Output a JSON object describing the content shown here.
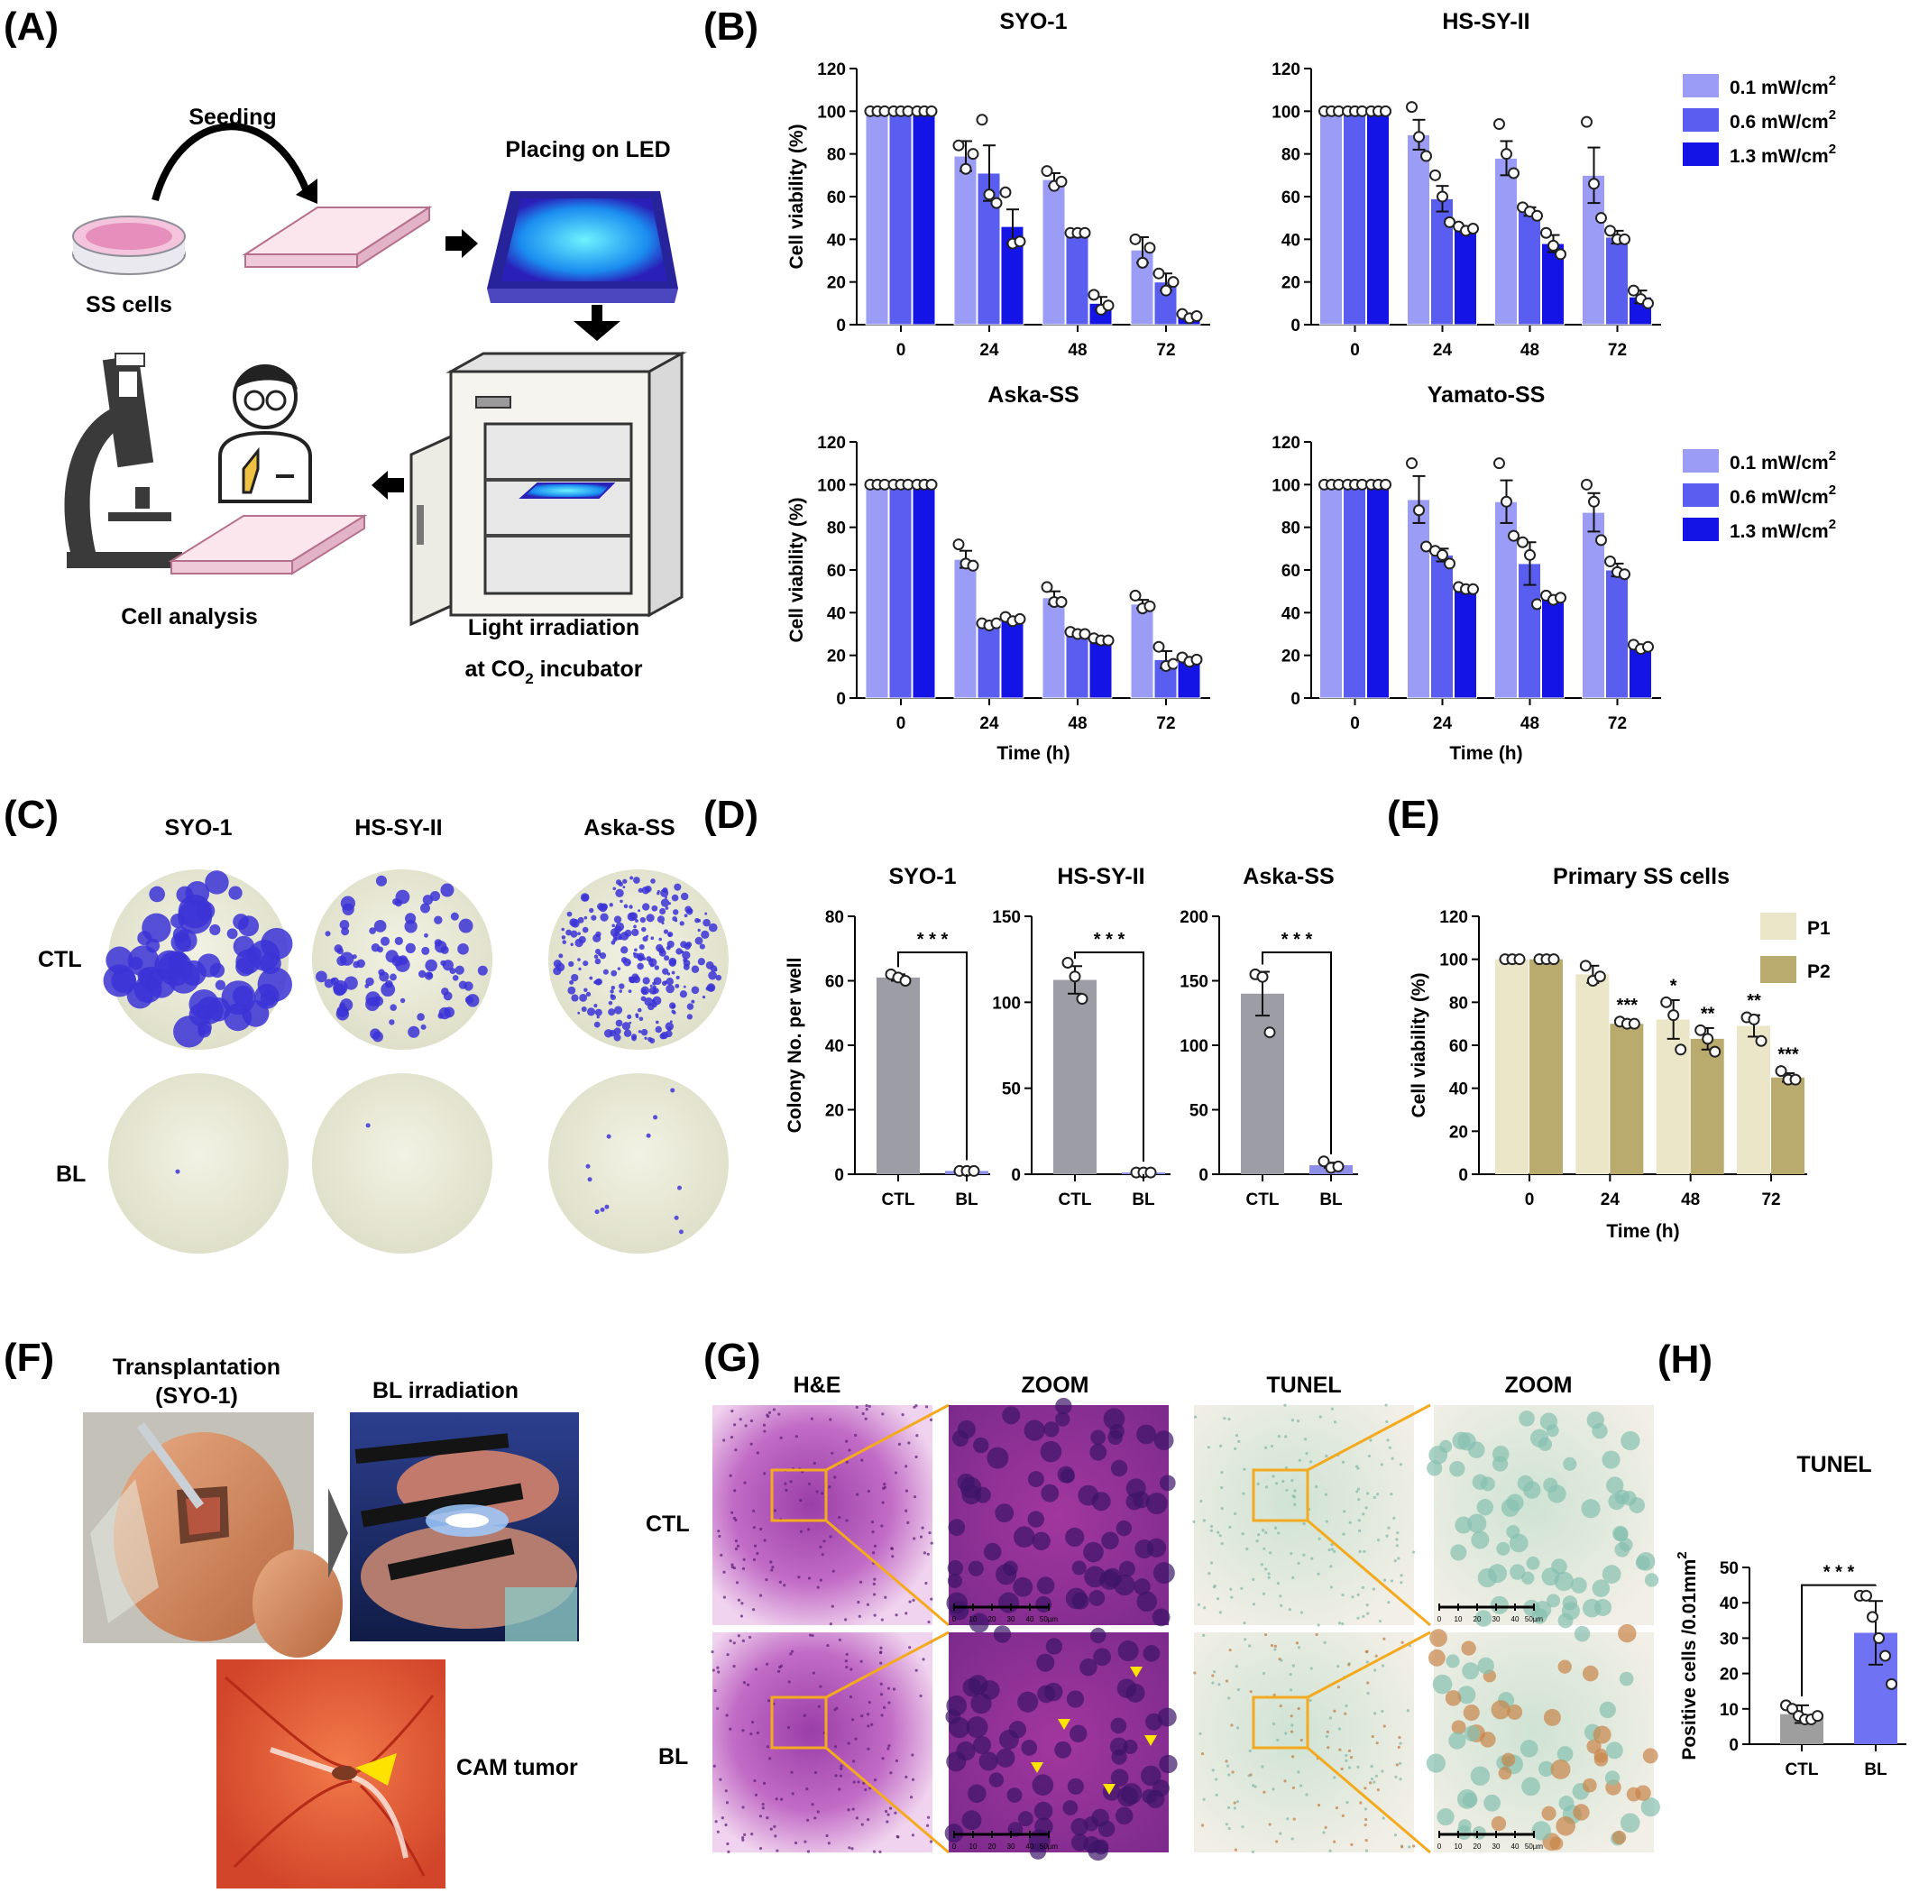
{
  "panel_labels": [
    "(A)",
    "(B)",
    "(C)",
    "(D)",
    "(E)",
    "(F)",
    "(G)",
    "(H)"
  ],
  "schematic": {
    "seeding": "Seeding",
    "placing": "Placing on LED",
    "ss_cells": "SS cells",
    "cell_analysis": "Cell analysis",
    "light_irradiation": "Light irradiation",
    "at_incubator_prefix": "at CO",
    "at_incubator_sub": "2",
    "at_incubator_suffix": " incubator"
  },
  "colony_plates": {
    "columns": [
      "SYO-1",
      "HS-SY-II",
      "Aska-SS"
    ],
    "rows": [
      "CTL",
      "BL"
    ]
  },
  "cam": {
    "transplant_line1": "Transplantation",
    "transplant_line2": "(SYO-1)",
    "bl_irradiation": "BL irradiation",
    "cam_tumor": "CAM tumor"
  },
  "histology": {
    "columns": [
      "H&E",
      "ZOOM",
      "TUNEL",
      "ZOOM"
    ],
    "rows": [
      "CTL",
      "BL"
    ],
    "scale_ticks": [
      "0",
      "10",
      "20",
      "30",
      "40",
      "50µm"
    ]
  },
  "chart_data": [
    {
      "panel": "B",
      "type": "bar",
      "title": "SYO-1",
      "ylabel": "Cell viability (%)",
      "xlabel": "",
      "categories": [
        "0",
        "24",
        "48",
        "72"
      ],
      "ylim": [
        0,
        120
      ],
      "yticks": [
        0,
        20,
        40,
        60,
        80,
        100,
        120
      ],
      "legend": "top-right",
      "series": [
        {
          "name": "0.1 mW/cm",
          "values": [
            100,
            79,
            68,
            35
          ],
          "errors": [
            0,
            7,
            3,
            6
          ],
          "points": [
            [
              100,
              100,
              100
            ],
            [
              84,
              73,
              80
            ],
            [
              72,
              65,
              67
            ],
            [
              40,
              29,
              36
            ]
          ]
        },
        {
          "name": "0.6 mW/cm",
          "values": [
            100,
            71,
            43,
            20
          ],
          "errors": [
            0,
            13,
            1,
            4
          ],
          "points": [
            [
              100,
              100,
              100
            ],
            [
              96,
              61,
              57
            ],
            [
              43,
              43,
              43
            ],
            [
              24,
              16,
              20
            ]
          ]
        },
        {
          "name": "1.3 mW/cm",
          "values": [
            100,
            46,
            10,
            4
          ],
          "errors": [
            0,
            8,
            3,
            1
          ],
          "points": [
            [
              100,
              100,
              100
            ],
            [
              62,
              38,
              39
            ],
            [
              14,
              7,
              9
            ],
            [
              5,
              3,
              4
            ]
          ]
        }
      ]
    },
    {
      "panel": "B",
      "type": "bar",
      "title": "HS-SY-II",
      "ylabel": "",
      "xlabel": "",
      "categories": [
        "0",
        "24",
        "48",
        "72"
      ],
      "ylim": [
        0,
        120
      ],
      "yticks": [
        0,
        20,
        40,
        60,
        80,
        100,
        120
      ],
      "series": [
        {
          "name": "0.1 mW/cm",
          "values": [
            100,
            89,
            78,
            70
          ],
          "errors": [
            0,
            7,
            8,
            13
          ],
          "points": [
            [
              100,
              100,
              100
            ],
            [
              102,
              88,
              79
            ],
            [
              94,
              80,
              71
            ],
            [
              95,
              66,
              50
            ]
          ]
        },
        {
          "name": "0.6 mW/cm",
          "values": [
            100,
            59,
            53,
            41
          ],
          "errors": [
            0,
            6,
            2,
            3
          ],
          "points": [
            [
              100,
              100,
              100
            ],
            [
              70,
              60,
              48
            ],
            [
              55,
              53,
              51
            ],
            [
              44,
              40,
              40
            ]
          ]
        },
        {
          "name": "1.3 mW/cm",
          "values": [
            100,
            45,
            38,
            13
          ],
          "errors": [
            0,
            1,
            4,
            3
          ],
          "points": [
            [
              100,
              100,
              100
            ],
            [
              46,
              44,
              45
            ],
            [
              43,
              37,
              33
            ],
            [
              16,
              12,
              10
            ]
          ]
        }
      ]
    },
    {
      "panel": "B",
      "type": "bar",
      "title": "Aska-SS",
      "ylabel": "Cell viability (%)",
      "xlabel": "Time (h)",
      "categories": [
        "0",
        "24",
        "48",
        "72"
      ],
      "ylim": [
        0,
        120
      ],
      "yticks": [
        0,
        20,
        40,
        60,
        80,
        100,
        120
      ],
      "legend": "top-right",
      "series": [
        {
          "name": "0.1 mW/cm",
          "values": [
            100,
            65,
            47,
            44
          ],
          "errors": [
            0,
            4,
            3,
            2
          ],
          "points": [
            [
              100,
              100,
              100
            ],
            [
              72,
              63,
              62
            ],
            [
              52,
              45,
              45
            ],
            [
              48,
              42,
              43
            ]
          ]
        },
        {
          "name": "0.6 mW/cm",
          "values": [
            100,
            35,
            30,
            18
          ],
          "errors": [
            0,
            1,
            1,
            4
          ],
          "points": [
            [
              100,
              100,
              100
            ],
            [
              35,
              34,
              35
            ],
            [
              31,
              30,
              30
            ],
            [
              24,
              15,
              16
            ]
          ]
        },
        {
          "name": "1.3 mW/cm",
          "values": [
            100,
            37,
            27,
            18
          ],
          "errors": [
            0,
            1,
            1,
            1
          ],
          "points": [
            [
              100,
              100,
              100
            ],
            [
              38,
              36,
              37
            ],
            [
              28,
              27,
              27
            ],
            [
              19,
              17,
              18
            ]
          ]
        }
      ]
    },
    {
      "panel": "B",
      "type": "bar",
      "title": "Yamato-SS",
      "ylabel": "",
      "xlabel": "Time (h)",
      "categories": [
        "0",
        "24",
        "48",
        "72"
      ],
      "ylim": [
        0,
        120
      ],
      "yticks": [
        0,
        20,
        40,
        60,
        80,
        100,
        120
      ],
      "series": [
        {
          "name": "0.1 mW/cm",
          "values": [
            100,
            93,
            92,
            87
          ],
          "errors": [
            0,
            11,
            10,
            9
          ],
          "points": [
            [
              100,
              100,
              100
            ],
            [
              110,
              88,
              71
            ],
            [
              110,
              92,
              76
            ],
            [
              100,
              92,
              74
            ]
          ]
        },
        {
          "name": "0.6 mW/cm",
          "values": [
            100,
            67,
            63,
            60
          ],
          "errors": [
            0,
            3,
            10,
            3
          ],
          "points": [
            [
              100,
              100,
              100
            ],
            [
              69,
              67,
              63
            ],
            [
              73,
              67,
              44
            ],
            [
              64,
              59,
              58
            ]
          ]
        },
        {
          "name": "1.3 mW/cm",
          "values": [
            100,
            51,
            47,
            24
          ],
          "errors": [
            0,
            1,
            1,
            1
          ],
          "points": [
            [
              100,
              100,
              100
            ],
            [
              52,
              51,
              51
            ],
            [
              48,
              46,
              47
            ],
            [
              25,
              23,
              24
            ]
          ]
        }
      ]
    },
    {
      "panel": "B",
      "legend_series": [
        "0.1",
        "0.6",
        "1.3"
      ],
      "legend_unit_prefix": "mW/cm",
      "legend_unit_sup": "2"
    },
    {
      "panel": "D",
      "type": "bar",
      "title": "SYO-1",
      "ylabel": "Colony No. per well",
      "categories": [
        "CTL",
        "BL"
      ],
      "ylim": [
        0,
        80
      ],
      "yticks": [
        0,
        20,
        40,
        60,
        80
      ],
      "values": [
        61,
        1
      ],
      "errors": [
        1,
        0.5
      ],
      "points": [
        [
          62,
          61,
          60
        ],
        [
          1,
          1,
          1
        ]
      ],
      "significance": "***"
    },
    {
      "panel": "D",
      "type": "bar",
      "title": "HS-SY-II",
      "ylabel": "",
      "categories": [
        "CTL",
        "BL"
      ],
      "ylim": [
        0,
        150
      ],
      "yticks": [
        0,
        50,
        100,
        150
      ],
      "values": [
        113,
        1
      ],
      "errors": [
        8,
        0.5
      ],
      "points": [
        [
          123,
          115,
          102
        ],
        [
          1,
          1,
          1
        ]
      ],
      "significance": "***"
    },
    {
      "panel": "D",
      "type": "bar",
      "title": "Aska-SS",
      "ylabel": "",
      "categories": [
        "CTL",
        "BL"
      ],
      "ylim": [
        0,
        200
      ],
      "yticks": [
        0,
        50,
        100,
        150,
        200
      ],
      "values": [
        140,
        7
      ],
      "errors": [
        17,
        2
      ],
      "points": [
        [
          155,
          153,
          110
        ],
        [
          10,
          5,
          6
        ]
      ],
      "significance": "***"
    },
    {
      "panel": "E",
      "type": "bar",
      "title": "Primary SS cells",
      "ylabel": "Cell viability (%)",
      "xlabel": "Time (h)",
      "categories": [
        "0",
        "24",
        "48",
        "72"
      ],
      "ylim": [
        0,
        120
      ],
      "yticks": [
        0,
        20,
        40,
        60,
        80,
        100,
        120
      ],
      "legend": "top-right",
      "series": [
        {
          "name": "P1",
          "values": [
            100,
            93,
            72,
            69
          ],
          "errors": [
            0,
            4,
            9,
            5
          ],
          "points": [
            [
              100,
              100,
              100
            ],
            [
              97,
              90,
              92
            ],
            [
              80,
              74,
              58
            ],
            [
              73,
              72,
              62
            ]
          ],
          "significance": [
            "",
            "",
            "*",
            "**"
          ]
        },
        {
          "name": "P2",
          "values": [
            100,
            70,
            63,
            45
          ],
          "errors": [
            0,
            1,
            5,
            2
          ],
          "points": [
            [
              100,
              100,
              100
            ],
            [
              71,
              70,
              70
            ],
            [
              67,
              63,
              57
            ],
            [
              48,
              44,
              44
            ]
          ],
          "significance": [
            "",
            "***",
            "**",
            "***"
          ]
        }
      ]
    },
    {
      "panel": "H",
      "type": "bar",
      "title": "TUNEL",
      "ylabel": "Positive cells /0.01mm",
      "ylabel_sup": "2",
      "categories": [
        "CTL",
        "BL"
      ],
      "ylim": [
        0,
        50
      ],
      "yticks": [
        0,
        10,
        20,
        30,
        40,
        50
      ],
      "values": [
        8.5,
        31.5
      ],
      "errors": [
        2.5,
        9
      ],
      "points": [
        [
          11,
          10,
          8,
          7,
          7,
          8
        ],
        [
          42,
          42,
          36,
          30,
          25,
          17
        ]
      ],
      "significance": "***"
    }
  ],
  "colors": {
    "b_series": [
      "#9a9cf6",
      "#5a5ef0",
      "#1414e6"
    ],
    "d_bar_ctl": "#9d9da5",
    "d_bar_bl": "#8d8fe6",
    "e_series": [
      "#ece6c8",
      "#b9ab6e"
    ],
    "h_bar_ctl": "#9e9e9e",
    "h_bar_bl": "#6f72f3",
    "zoom_line": "#f3aa1f"
  }
}
